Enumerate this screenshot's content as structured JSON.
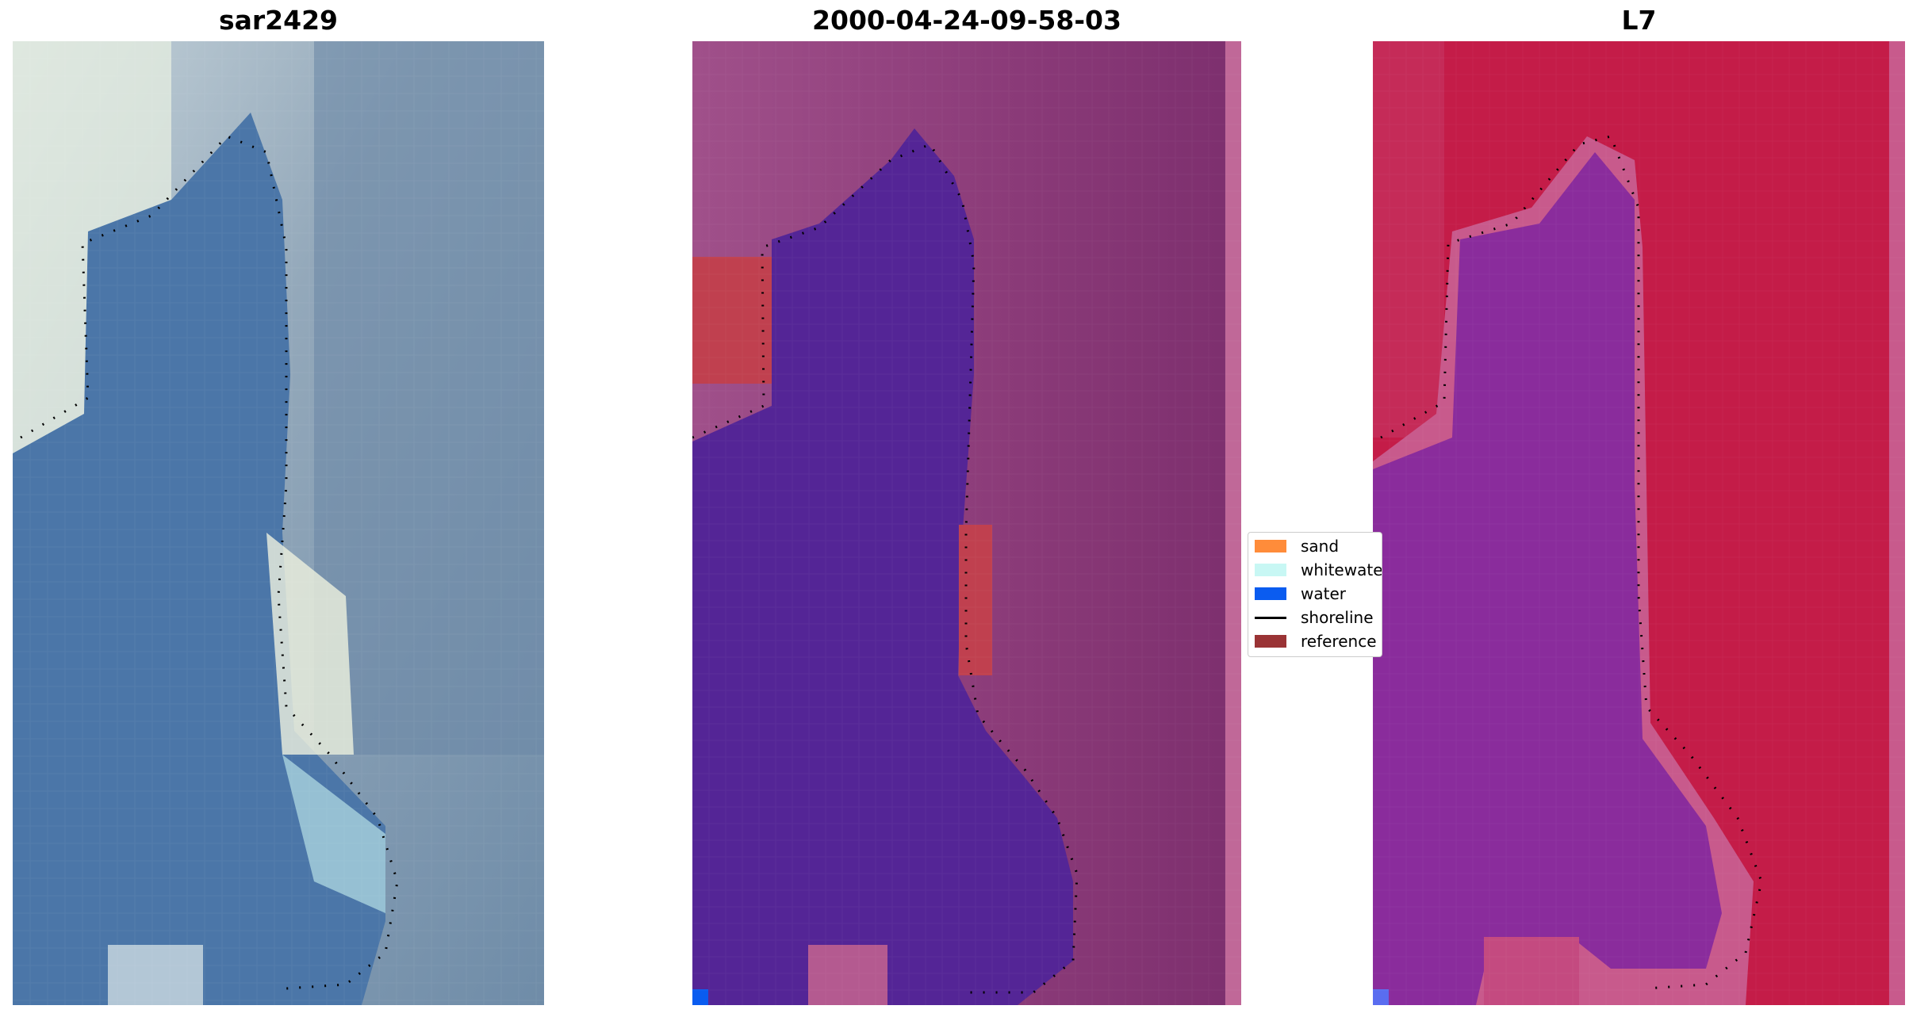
{
  "panels": [
    {
      "title": "sar2429",
      "colors": {
        "light": "#e8efe4",
        "mid": "#7e96ac",
        "water": "#4b76a8",
        "dark": "#3f6b9c"
      }
    },
    {
      "title": "2000-04-24-09-58-03",
      "colors": {
        "land": "#9a4b82",
        "water": "#542596",
        "reference": "#c0404f",
        "edge": "#c06898"
      }
    },
    {
      "title": "L7",
      "colors": {
        "land": "#c41c48",
        "water": "#8a2c9c",
        "edge": "#c85a8c"
      }
    }
  ],
  "legend": {
    "items": [
      {
        "label": "sand",
        "color": "#ff8c3a",
        "kind": "patch"
      },
      {
        "label": "whitewater",
        "color": "#c8f7f4",
        "kind": "patch"
      },
      {
        "label": "water",
        "color": "#0a5cf0",
        "kind": "patch"
      },
      {
        "label": "shoreline",
        "color": "#000000",
        "kind": "line"
      },
      {
        "label": "reference",
        "color": "#9a3335",
        "kind": "patch"
      }
    ]
  }
}
